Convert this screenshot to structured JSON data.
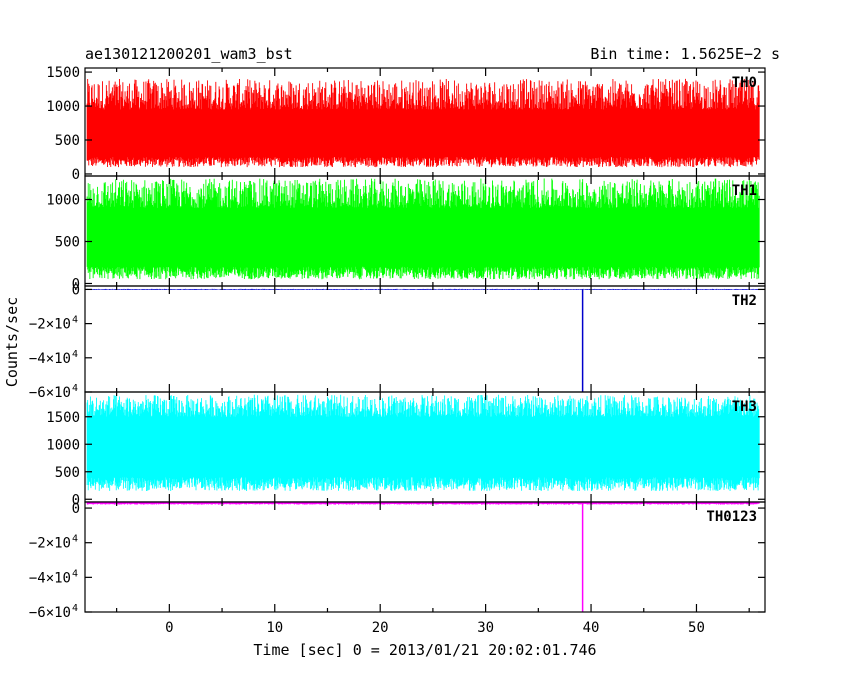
{
  "title_left": "ae130121200201_wam3_bst",
  "title_right": "Bin time: 1.5625E−2 s",
  "ylabel": "Counts/sec",
  "xlabel": "Time [sec] 0 = 2013/01/21 20:02:01.746",
  "chart_data": {
    "type": "line",
    "xlim": [
      -8,
      56.5
    ],
    "x_ticks": [
      {
        "value": 0,
        "label": "0"
      },
      {
        "value": 10,
        "label": "10"
      },
      {
        "value": 20,
        "label": "20"
      },
      {
        "value": 30,
        "label": "30"
      },
      {
        "value": 40,
        "label": "40"
      },
      {
        "value": 50,
        "label": "50"
      }
    ],
    "x_data_range": [
      -7.8,
      56
    ],
    "panels": [
      {
        "name": "TH0",
        "color": "#ff0000",
        "ylim": [
          -30,
          1560
        ],
        "y_ticks": [
          {
            "value": 0,
            "label": "0"
          },
          {
            "value": 500,
            "label": "500"
          },
          {
            "value": 1000,
            "label": "1000"
          },
          {
            "value": 1500,
            "label": "1500"
          }
        ],
        "band_low": [
          100,
          250
        ],
        "band_high": [
          950,
          1400
        ],
        "spikes": []
      },
      {
        "name": "TH1",
        "color": "#00ff00",
        "ylim": [
          -30,
          1280
        ],
        "y_ticks": [
          {
            "value": 0,
            "label": "0"
          },
          {
            "value": 500,
            "label": "500"
          },
          {
            "value": 1000,
            "label": "1000"
          }
        ],
        "band_low": [
          50,
          200
        ],
        "band_high": [
          900,
          1250
        ],
        "spikes": []
      },
      {
        "name": "TH2",
        "color": "#0000cc",
        "ylim": [
          -60000,
          2000
        ],
        "y_ticks": [
          {
            "value": 0,
            "label": "0",
            "exp": ""
          },
          {
            "value": -20000,
            "label": "−2×10",
            "exp": "4"
          },
          {
            "value": -40000,
            "label": "−4×10",
            "exp": "4"
          },
          {
            "value": -60000,
            "label": "−6×10",
            "exp": "4"
          }
        ],
        "band_low": [
          -300,
          -100
        ],
        "band_high": [
          100,
          300
        ],
        "spikes": [
          {
            "x": 39.2,
            "y": -60000
          }
        ]
      },
      {
        "name": "TH3",
        "color": "#00ffff",
        "ylim": [
          -50,
          1950
        ],
        "y_ticks": [
          {
            "value": 0,
            "label": "0"
          },
          {
            "value": 500,
            "label": "500"
          },
          {
            "value": 1000,
            "label": "1000"
          },
          {
            "value": 1500,
            "label": "1500"
          }
        ],
        "band_low": [
          150,
          400
        ],
        "band_high": [
          1500,
          1900
        ],
        "spikes": []
      },
      {
        "name": "TH0123",
        "color": "#ff00ff",
        "ylim": [
          -60000,
          3500
        ],
        "y_ticks": [
          {
            "value": 0,
            "label": "0",
            "exp": ""
          },
          {
            "value": -20000,
            "label": "−2×10",
            "exp": "4"
          },
          {
            "value": -40000,
            "label": "−4×10",
            "exp": "4"
          },
          {
            "value": -60000,
            "label": "−6×10",
            "exp": "4"
          }
        ],
        "band_low": [
          2000,
          2600
        ],
        "band_high": [
          3400,
          4000
        ],
        "spikes": [
          {
            "x": 39.2,
            "y": -60000
          }
        ]
      }
    ]
  }
}
